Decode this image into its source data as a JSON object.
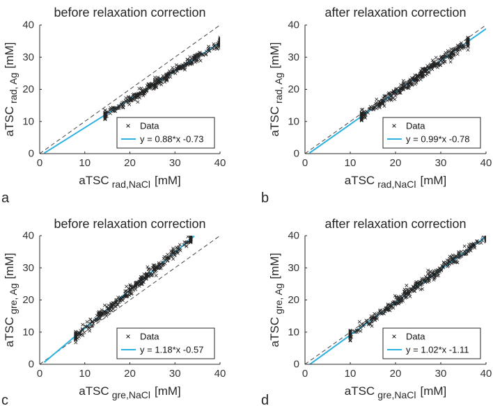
{
  "chart_data": [
    {
      "id": "a",
      "type": "scatter",
      "panel_label": "a",
      "title": "before relaxation correction",
      "xlabel": {
        "main": "aTSC",
        "sub": "rad,NaCl",
        "unit": "[mM]"
      },
      "ylabel": {
        "main": "aTSC",
        "sub": "rad, Ag",
        "unit": "[mM]"
      },
      "xlim": [
        0,
        40
      ],
      "ylim": [
        0,
        40
      ],
      "xticks": [
        "0",
        "10",
        "20",
        "30",
        "40"
      ],
      "yticks": [
        "0",
        "10",
        "20",
        "30",
        "40"
      ],
      "identity_line": true,
      "fit": {
        "slope": 0.88,
        "intercept": -0.73,
        "x_range": [
          1,
          40
        ]
      },
      "data_cloud": {
        "x_range": [
          14.5,
          40
        ],
        "spread": 0.7,
        "count": 380
      },
      "legend": {
        "placement": "bottom-right",
        "data_label": "Data",
        "fit_label": "y = 0.88*x -0.73"
      },
      "colors": {
        "fit": "#2bb0e0",
        "marker": "#222222",
        "identity": "#444444"
      }
    },
    {
      "id": "b",
      "type": "scatter",
      "panel_label": "b",
      "title": "after relaxation correction",
      "xlabel": {
        "main": "aTSC",
        "sub": "rad,NaCl",
        "unit": "[mM]"
      },
      "ylabel": {
        "main": "aTSC",
        "sub": "rad, Ag",
        "unit": "[mM]"
      },
      "xlim": [
        0,
        40
      ],
      "ylim": [
        0,
        40
      ],
      "xticks": [
        "0",
        "10",
        "20",
        "30",
        "40"
      ],
      "yticks": [
        "0",
        "10",
        "20",
        "30",
        "40"
      ],
      "identity_line": true,
      "fit": {
        "slope": 0.99,
        "intercept": -0.78,
        "x_range": [
          1,
          40
        ]
      },
      "data_cloud": {
        "x_range": [
          12.5,
          36
        ],
        "spread": 0.8,
        "count": 380
      },
      "legend": {
        "placement": "bottom-right",
        "data_label": "Data",
        "fit_label": "y = 0.99*x -0.78"
      },
      "colors": {
        "fit": "#2bb0e0",
        "marker": "#222222",
        "identity": "#444444"
      }
    },
    {
      "id": "c",
      "type": "scatter",
      "panel_label": "c",
      "title": "before relaxation correction",
      "xlabel": {
        "main": "aTSC",
        "sub": "gre,NaCl",
        "unit": "[mM]"
      },
      "ylabel": {
        "main": "aTSC",
        "sub": "gre, Ag",
        "unit": "[mM]"
      },
      "xlim": [
        0,
        40
      ],
      "ylim": [
        0,
        40
      ],
      "xticks": [
        "0",
        "10",
        "20",
        "30",
        "40"
      ],
      "yticks": [
        "0",
        "10",
        "20",
        "30",
        "40"
      ],
      "identity_line": true,
      "fit": {
        "slope": 1.18,
        "intercept": -0.57,
        "x_range": [
          1,
          34.3
        ]
      },
      "data_cloud": {
        "x_range": [
          8,
          33.5
        ],
        "spread": 0.8,
        "count": 380
      },
      "legend": {
        "placement": "bottom-right",
        "data_label": "Data",
        "fit_label": "y = 1.18*x -0.57"
      },
      "colors": {
        "fit": "#2bb0e0",
        "marker": "#222222",
        "identity": "#444444"
      }
    },
    {
      "id": "d",
      "type": "scatter",
      "panel_label": "d",
      "title": "after relaxation correction",
      "xlabel": {
        "main": "aTSC",
        "sub": "gre,NaCl",
        "unit": "[mM]"
      },
      "ylabel": {
        "main": "aTSC",
        "sub": "gre, Ag",
        "unit": "[mM]"
      },
      "xlim": [
        0,
        40
      ],
      "ylim": [
        0,
        40
      ],
      "xticks": [
        "0",
        "10",
        "20",
        "30",
        "40"
      ],
      "yticks": [
        "0",
        "10",
        "20",
        "30",
        "40"
      ],
      "identity_line": true,
      "fit": {
        "slope": 1.02,
        "intercept": -1.11,
        "x_range": [
          1,
          40
        ]
      },
      "data_cloud": {
        "x_range": [
          10,
          40
        ],
        "spread": 0.8,
        "count": 380
      },
      "legend": {
        "placement": "bottom-right",
        "data_label": "Data",
        "fit_label": "y = 1.02*x -1.11"
      },
      "colors": {
        "fit": "#2bb0e0",
        "marker": "#222222",
        "identity": "#444444"
      }
    }
  ]
}
